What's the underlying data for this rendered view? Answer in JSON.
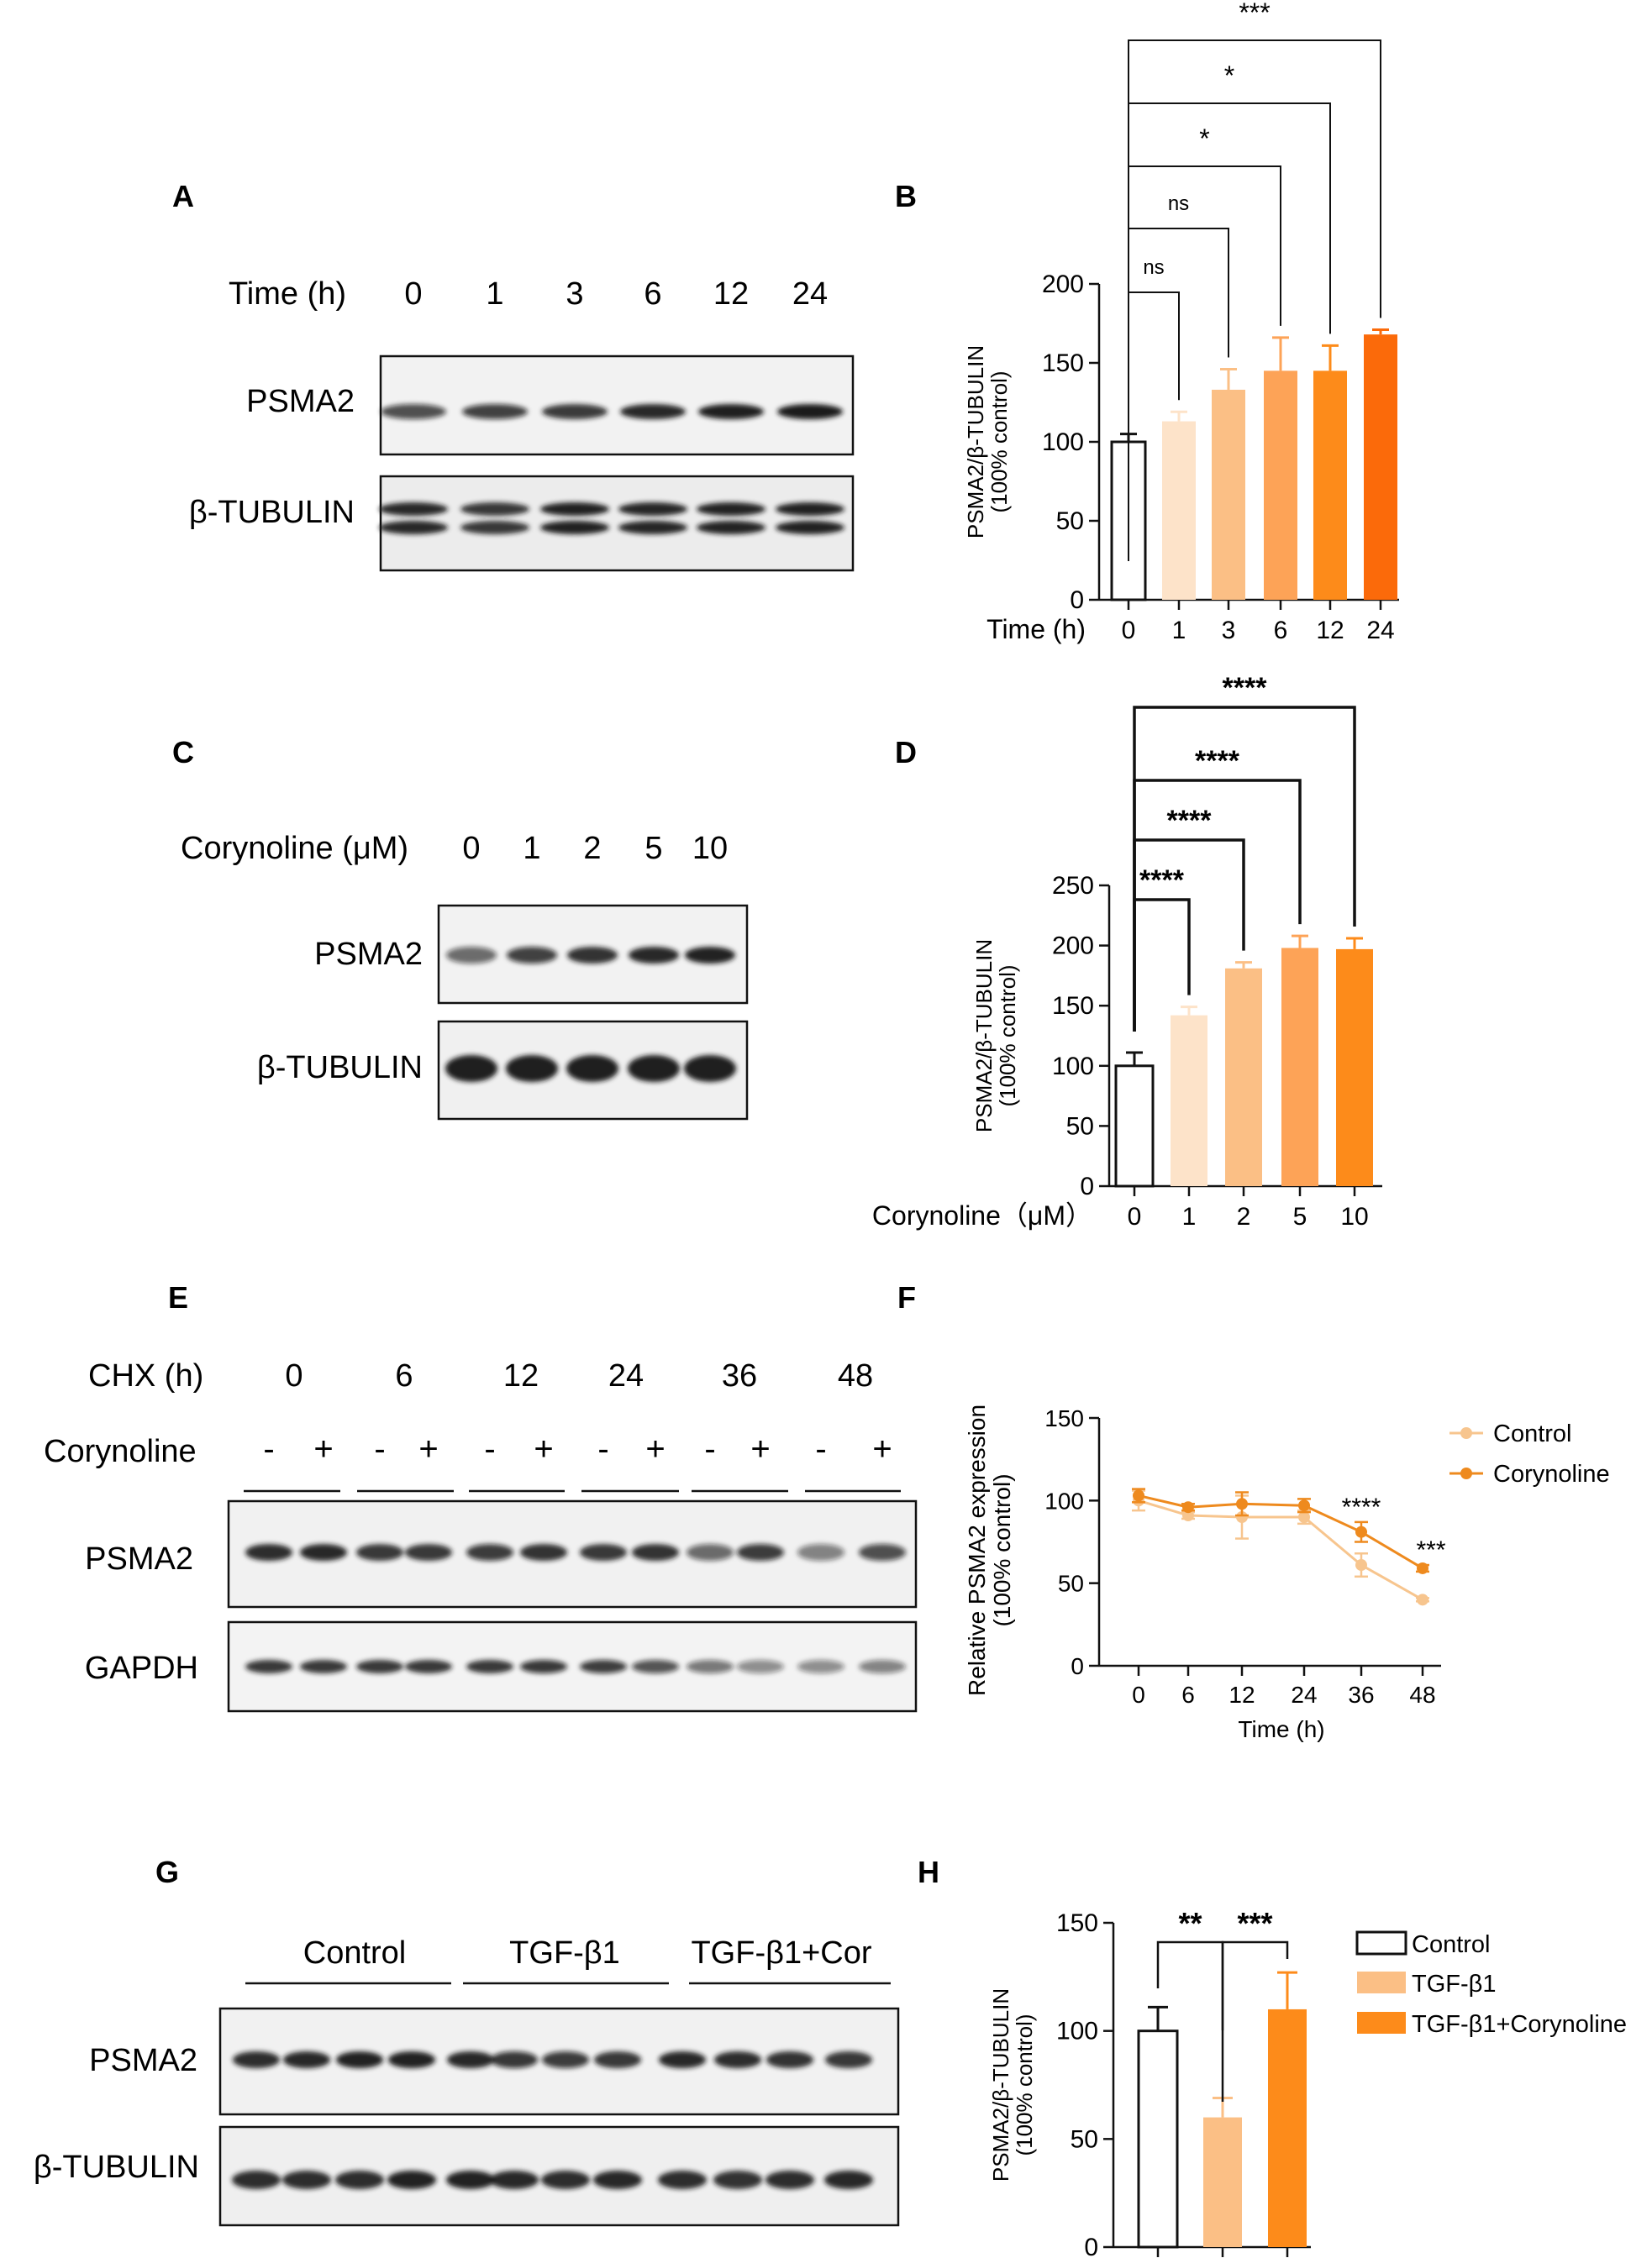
{
  "figure": {
    "panel_labels": [
      "A",
      "B",
      "C",
      "D",
      "E",
      "F",
      "G",
      "H"
    ]
  },
  "colors": {
    "orange_darkest": "#fb6a0a",
    "orange_dark": "#fd8b1a",
    "orange_mid": "#fda357",
    "orange_light": "#fbbf85",
    "orange_pale": "#fde3c9",
    "control_line": "#f7c58e",
    "corynoline_line": "#ee8a1e",
    "blot_bg": "#f2f2f2",
    "band": "#141414"
  },
  "blots": {
    "A": {
      "header_label": "Time (h)",
      "lanes": [
        "0",
        "1",
        "3",
        "6",
        "12",
        "24"
      ],
      "rows": [
        "PSMA2",
        "β-TUBULIN"
      ]
    },
    "C": {
      "header_label": "Corynoline (μM)",
      "lanes": [
        "0",
        "1",
        "2",
        "5",
        "10"
      ],
      "rows": [
        "PSMA2",
        "β-TUBULIN"
      ]
    },
    "E": {
      "header_label": "CHX (h)",
      "groups": [
        "0",
        "6",
        "12",
        "24",
        "36",
        "48"
      ],
      "treatment_label": "Corynoline",
      "signs": [
        "-",
        "+"
      ],
      "rows": [
        "PSMA2",
        "GAPDH"
      ]
    },
    "G": {
      "groups": [
        "Control",
        "TGF-β1",
        "TGF-β1+Cor"
      ],
      "rows": [
        "PSMA2",
        "β-TUBULIN"
      ]
    }
  },
  "chart_data": [
    {
      "panel": "B",
      "type": "bar",
      "xlabel": "Time (h)",
      "ylabel": "PSMA2/β-TUBULIN",
      "ylabel2": "(100% control)",
      "categories": [
        "0",
        "1",
        "3",
        "6",
        "12",
        "24"
      ],
      "values": [
        100,
        113,
        133,
        145,
        145,
        168
      ],
      "errors": [
        5,
        6,
        13,
        21,
        16,
        3
      ],
      "ylim": [
        0,
        200
      ],
      "yticks": [
        0,
        50,
        100,
        150,
        200
      ],
      "significance": [
        {
          "from": 0,
          "to": 1,
          "label": "ns"
        },
        {
          "from": 0,
          "to": 2,
          "label": "ns"
        },
        {
          "from": 0,
          "to": 3,
          "label": "*"
        },
        {
          "from": 0,
          "to": 4,
          "label": "*"
        },
        {
          "from": 0,
          "to": 5,
          "label": "***"
        }
      ]
    },
    {
      "panel": "D",
      "type": "bar",
      "xlabel": "Corynoline（μM）",
      "ylabel": "PSMA2/β-TUBULIN",
      "ylabel2": "(100% control)",
      "categories": [
        "0",
        "1",
        "2",
        "5",
        "10"
      ],
      "values": [
        100,
        142,
        181,
        198,
        197
      ],
      "errors": [
        11,
        7,
        5,
        10,
        9
      ],
      "ylim": [
        0,
        250
      ],
      "yticks": [
        0,
        50,
        100,
        150,
        200,
        250
      ],
      "significance": [
        {
          "from": 0,
          "to": 1,
          "label": "****"
        },
        {
          "from": 0,
          "to": 2,
          "label": "****"
        },
        {
          "from": 0,
          "to": 3,
          "label": "****"
        },
        {
          "from": 0,
          "to": 4,
          "label": "****"
        }
      ]
    },
    {
      "panel": "F",
      "type": "line",
      "xlabel": "Time (h)",
      "ylabel": "Relative PSMA2 expression",
      "ylabel2": "(100% control)",
      "x": [
        "0",
        "6",
        "12",
        "24",
        "36",
        "48"
      ],
      "series": [
        {
          "name": "Control",
          "values": [
            100,
            91,
            90,
            90,
            61,
            40
          ],
          "errors": [
            6,
            2,
            13,
            4,
            7,
            1
          ]
        },
        {
          "name": "Corynoline",
          "values": [
            103,
            96,
            98,
            97,
            81,
            59
          ],
          "errors": [
            4,
            2,
            7,
            4,
            6,
            2
          ]
        }
      ],
      "ylim": [
        0,
        150
      ],
      "yticks": [
        0,
        50,
        100,
        150
      ],
      "annotations": [
        {
          "x_index": 4,
          "label": "****"
        },
        {
          "x_index": 5,
          "label": "***"
        }
      ],
      "legend_position": "top-right"
    },
    {
      "panel": "H",
      "type": "bar",
      "ylabel": "PSMA2/β-TUBULIN",
      "ylabel2": "(100% control)",
      "categories": [
        "Control",
        "TGF-β1",
        "TGF-β1+Corynoline"
      ],
      "values": [
        100,
        60,
        110
      ],
      "errors": [
        11,
        9,
        17
      ],
      "ylim": [
        0,
        150
      ],
      "yticks": [
        0,
        50,
        100,
        150
      ],
      "significance": [
        {
          "from": 0,
          "to": 1,
          "label": "**"
        },
        {
          "from": 1,
          "to": 2,
          "label": "***"
        }
      ],
      "legend_position": "top-right"
    }
  ]
}
